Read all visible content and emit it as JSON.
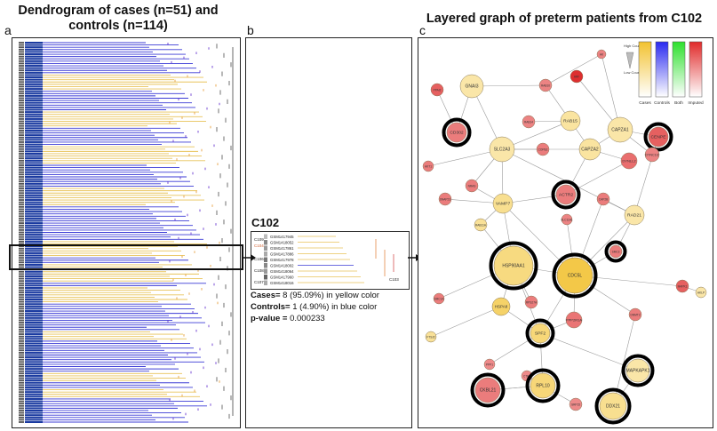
{
  "titles": {
    "left": "Dendrogram of cases (n=51) and controls (n=114)",
    "right": "Layered graph of preterm patients from C102"
  },
  "panel_labels": [
    "a",
    "b",
    "c"
  ],
  "cluster": {
    "name": "C102",
    "samples": [
      "GSM1417945",
      "GSM1418052",
      "GSM1417861",
      "GSM1417886",
      "GSM1417978",
      "GSM1418002",
      "GSM1418064",
      "GSM1417960",
      "GSM1418016"
    ],
    "node_labels": [
      "C109",
      "C104",
      "C106",
      "C108",
      "C107",
      "C103"
    ],
    "cases_label": "Cases=",
    "cases_text": " 8 (95.09%) in yellow color",
    "controls_label": "Controls=",
    "controls_text": " 1 (4.90%) in blue color",
    "pvalue_label": "p-value =",
    "pvalue_text": " 0.000233"
  },
  "legend": {
    "high": "High Count",
    "low": "Low Count",
    "items": [
      "Cases",
      "Controls",
      "Both",
      "Imputed"
    ],
    "colors": {
      "cases": "#f2c230",
      "controls": "#2a2af0",
      "both": "#2ee02e",
      "imputed": "#e02a2a"
    }
  },
  "graph": {
    "nodes": [
      {
        "label": "AK",
        "type": "imputed",
        "shade": 0.35
      },
      {
        "label": "GNAI3",
        "type": "cases",
        "shade": 0.2
      },
      {
        "label": "RAB10",
        "type": "imputed",
        "shade": 0.35
      },
      {
        "label": "ARF",
        "type": "imputed",
        "shade": 0.95
      },
      {
        "label": "PPAI2",
        "type": "imputed",
        "shade": 0.6
      },
      {
        "label": "RAB14",
        "type": "imputed",
        "shade": 0.35
      },
      {
        "label": "RAB15",
        "type": "cases",
        "shade": 0.25
      },
      {
        "label": "CAPZA1",
        "type": "cases",
        "shade": 0.2
      },
      {
        "label": "CD302",
        "type": "imputed",
        "shade": 0.4
      },
      {
        "label": "CAPZA2",
        "type": "cases",
        "shade": 0.25
      },
      {
        "label": "COPB2",
        "type": "imputed",
        "shade": 0.4
      },
      {
        "label": "SLC2A3",
        "type": "cases",
        "shade": 0.2
      },
      {
        "label": "CENPE",
        "type": "imputed",
        "shade": 0.6
      },
      {
        "label": "DYNLL2",
        "type": "imputed",
        "shade": 0.5
      },
      {
        "label": "DYNC1I2",
        "type": "imputed",
        "shade": 0.35
      },
      {
        "label": "AKT1",
        "type": "imputed",
        "shade": 0.4
      },
      {
        "label": "NRAS",
        "type": "imputed",
        "shade": 0.4
      },
      {
        "label": "ACTR2",
        "type": "imputed",
        "shade": 0.4
      },
      {
        "label": "SNAP23",
        "type": "imputed",
        "shade": 0.4
      },
      {
        "label": "VAMP7",
        "type": "cases",
        "shade": 0.35
      },
      {
        "label": "CAP2B",
        "type": "imputed",
        "shade": 0.4
      },
      {
        "label": "SLC11A1",
        "type": "imputed",
        "shade": 0.35
      },
      {
        "label": "RAD21",
        "type": "cases",
        "shade": 0.2
      },
      {
        "label": "RAB11A",
        "type": "cases",
        "shade": 0.3
      },
      {
        "label": "SMC3",
        "type": "imputed",
        "shade": 0.4
      },
      {
        "label": "HSP90AA1",
        "type": "cases",
        "shade": 0.45
      },
      {
        "label": "CDC5L",
        "type": "cases",
        "shade": 0.8
      },
      {
        "label": "MAPK1",
        "type": "imputed",
        "shade": 0.6
      },
      {
        "label": "AKLP",
        "type": "cases",
        "shade": 0.2
      },
      {
        "label": "SMC1A",
        "type": "imputed",
        "shade": 0.4
      },
      {
        "label": "RPS27A",
        "type": "imputed",
        "shade": 0.4
      },
      {
        "label": "HSPA8",
        "type": "cases",
        "shade": 0.6
      },
      {
        "label": "PPP2R1A",
        "type": "imputed",
        "shade": 0.45
      },
      {
        "label": "DNMT2",
        "type": "imputed",
        "shade": 0.4
      },
      {
        "label": "SPF2",
        "type": "cases",
        "shade": 0.5
      },
      {
        "label": "FTSJ2",
        "type": "cases",
        "shade": 0.3
      },
      {
        "label": "MAPKAPK1",
        "type": "cases",
        "shade": 0.2
      },
      {
        "label": "PPP1",
        "type": "imputed",
        "shade": 0.3
      },
      {
        "label": "CTF1",
        "type": "imputed",
        "shade": 0.3
      },
      {
        "label": "RPL10",
        "type": "cases",
        "shade": 0.5
      },
      {
        "label": "CKBL21",
        "type": "imputed",
        "shade": 0.4
      },
      {
        "label": "SRP15",
        "type": "imputed",
        "shade": 0.3
      },
      {
        "label": "DDX21",
        "type": "cases",
        "shade": 0.35
      }
    ]
  }
}
